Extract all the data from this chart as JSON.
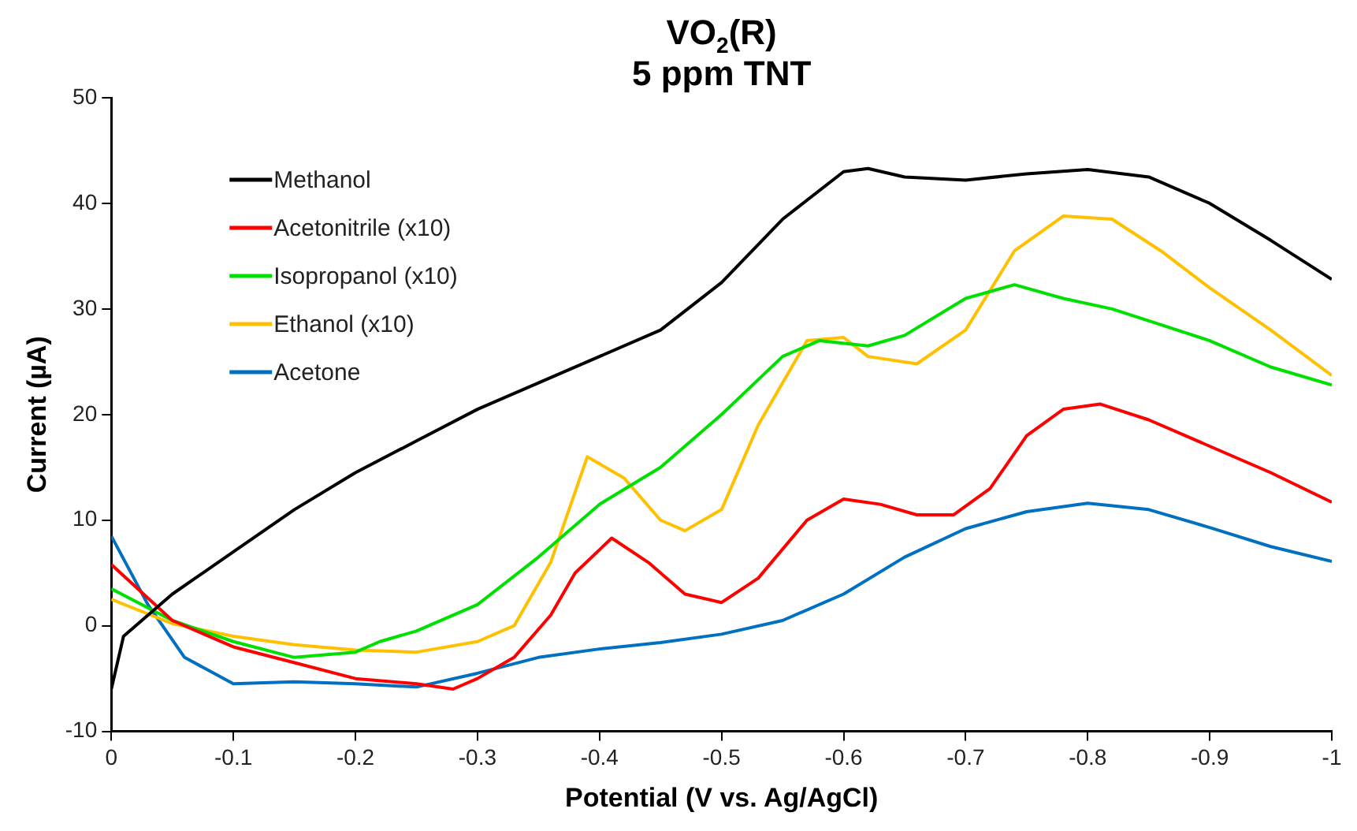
{
  "chart_data": {
    "type": "line",
    "title": "VO$_{2}$(R)",
    "subtitle": "5 ppm TNT",
    "xlabel": "Potential (V vs. Ag/AgCl)",
    "ylabel": "Current (µA)",
    "xlim": [
      0,
      -1
    ],
    "xticks": [
      0,
      -0.1,
      -0.2,
      -0.3,
      -0.4,
      -0.5,
      -0.6,
      -0.7,
      -0.8,
      -0.9,
      -1
    ],
    "ylim": [
      -10,
      50
    ],
    "yticks": [
      -10,
      0,
      10,
      20,
      30,
      40,
      50
    ],
    "grid": false,
    "legend": "top left",
    "marker": "none",
    "line_style": "solid",
    "series": [
      {
        "name": "Methanol",
        "color": "#000000",
        "x": [
          0,
          -0.01,
          -0.05,
          -0.1,
          -0.15,
          -0.2,
          -0.25,
          -0.3,
          -0.35,
          -0.4,
          -0.45,
          -0.5,
          -0.55,
          -0.6,
          -0.62,
          -0.65,
          -0.7,
          -0.75,
          -0.8,
          -0.85,
          -0.9,
          -0.95,
          -1
        ],
        "values": [
          -6,
          -1,
          3,
          7,
          11,
          14.5,
          17.5,
          20.5,
          23,
          25.5,
          28,
          32.5,
          38.5,
          43,
          43.3,
          42.5,
          42.2,
          42.8,
          43.2,
          42.5,
          40,
          36.5,
          32.8
        ]
      },
      {
        "name": "Acetonitrile (x10)",
        "color": "#ff0000",
        "x": [
          0,
          -0.05,
          -0.1,
          -0.15,
          -0.2,
          -0.25,
          -0.28,
          -0.3,
          -0.33,
          -0.36,
          -0.38,
          -0.41,
          -0.44,
          -0.47,
          -0.5,
          -0.53,
          -0.57,
          -0.6,
          -0.63,
          -0.66,
          -0.69,
          -0.72,
          -0.75,
          -0.78,
          -0.81,
          -0.85,
          -0.9,
          -0.95,
          -1
        ],
        "values": [
          5.8,
          0.5,
          -2,
          -3.5,
          -5,
          -5.5,
          -6,
          -5,
          -3,
          1,
          5,
          8.3,
          6,
          3,
          2.2,
          4.5,
          10,
          12,
          11.5,
          10.5,
          10.5,
          13,
          18,
          20.5,
          21,
          19.5,
          17,
          14.5,
          11.7
        ]
      },
      {
        "name": "Isopropanol (x10)",
        "color": "#00e000",
        "x": [
          0,
          -0.05,
          -0.1,
          -0.15,
          -0.2,
          -0.22,
          -0.25,
          -0.3,
          -0.35,
          -0.4,
          -0.45,
          -0.5,
          -0.55,
          -0.58,
          -0.62,
          -0.65,
          -0.7,
          -0.74,
          -0.78,
          -0.82,
          -0.86,
          -0.9,
          -0.95,
          -1
        ],
        "values": [
          3.5,
          0.5,
          -1.5,
          -3,
          -2.5,
          -1.5,
          -0.5,
          2,
          6.5,
          11.5,
          15,
          20,
          25.5,
          27,
          26.5,
          27.5,
          31,
          32.3,
          31,
          30,
          28.5,
          27,
          24.5,
          22.8
        ]
      },
      {
        "name": "Ethanol (x10)",
        "color": "#ffc000",
        "x": [
          0,
          -0.05,
          -0.1,
          -0.15,
          -0.2,
          -0.25,
          -0.3,
          -0.33,
          -0.36,
          -0.39,
          -0.42,
          -0.45,
          -0.47,
          -0.5,
          -0.53,
          -0.57,
          -0.6,
          -0.62,
          -0.66,
          -0.7,
          -0.74,
          -0.78,
          -0.82,
          -0.86,
          -0.9,
          -0.95,
          -1
        ],
        "values": [
          2.5,
          0.2,
          -1,
          -1.8,
          -2.3,
          -2.5,
          -1.5,
          0,
          6,
          16,
          14,
          10,
          9,
          11,
          19,
          27,
          27.3,
          25.5,
          24.8,
          28,
          35.5,
          38.8,
          38.5,
          35.5,
          32,
          28,
          23.7
        ]
      },
      {
        "name": "Acetone",
        "color": "#0070c0",
        "x": [
          0,
          -0.03,
          -0.06,
          -0.1,
          -0.15,
          -0.2,
          -0.25,
          -0.3,
          -0.35,
          -0.4,
          -0.45,
          -0.5,
          -0.55,
          -0.6,
          -0.65,
          -0.7,
          -0.75,
          -0.8,
          -0.85,
          -0.9,
          -0.95,
          -1
        ],
        "values": [
          8.5,
          2,
          -3,
          -5.5,
          -5.3,
          -5.5,
          -5.8,
          -4.5,
          -3,
          -2.2,
          -1.6,
          -0.8,
          0.5,
          3,
          6.5,
          9.2,
          10.8,
          11.6,
          11,
          9.3,
          7.5,
          6.1
        ]
      }
    ]
  }
}
